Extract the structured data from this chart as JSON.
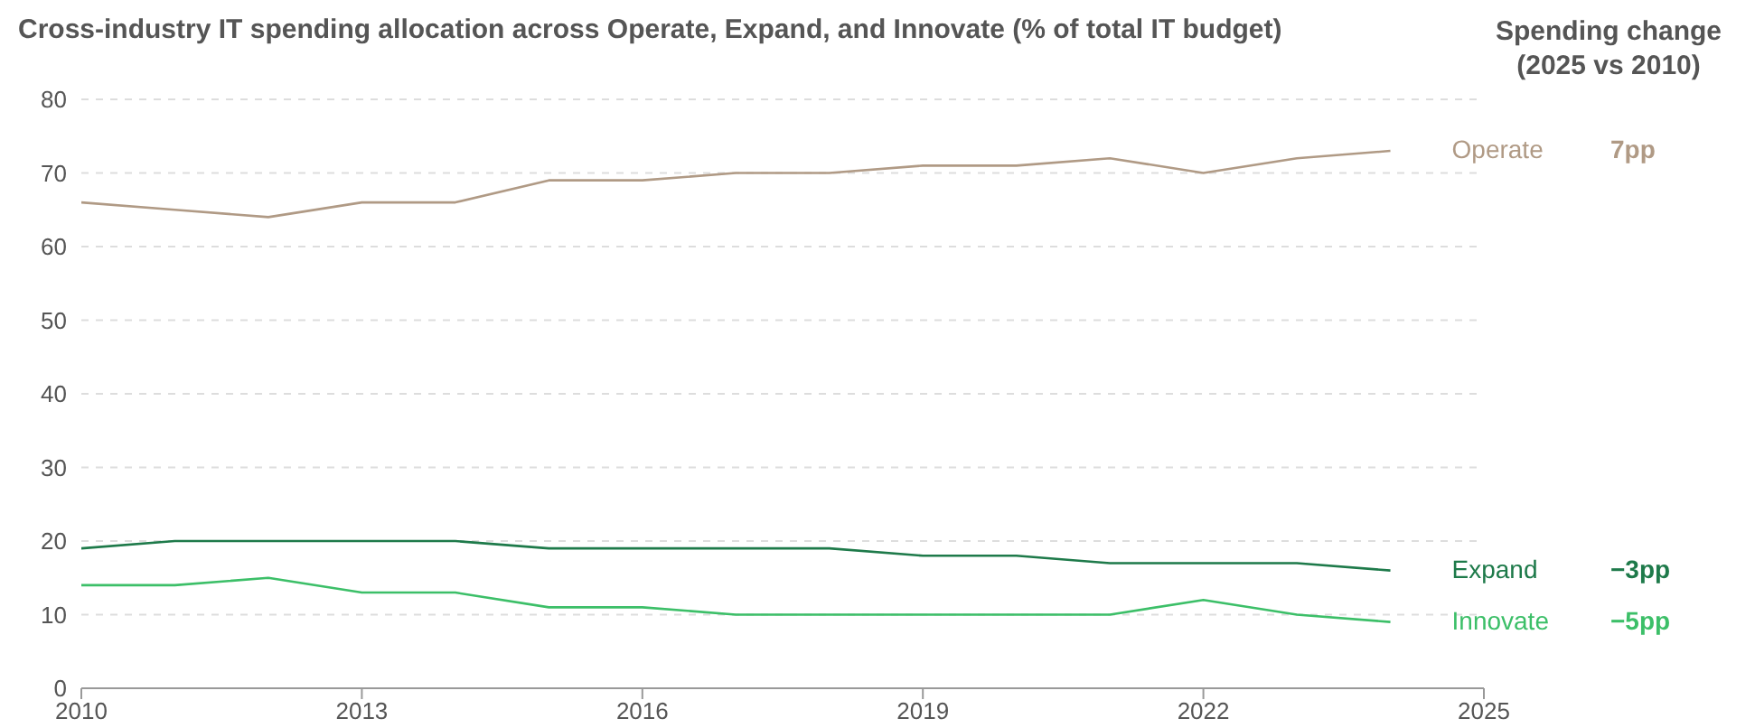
{
  "chart_data": {
    "type": "line",
    "title": "Cross-industry IT spending allocation across Operate, Expand, and Innovate (% of total IT budget)",
    "x": [
      2010,
      2011,
      2012,
      2013,
      2014,
      2015,
      2016,
      2017,
      2018,
      2019,
      2020,
      2021,
      2022,
      2023,
      2024
    ],
    "series": [
      {
        "name": "Operate",
        "color": "#b09a85",
        "values": [
          66,
          65,
          64,
          66,
          66,
          69,
          69,
          70,
          70,
          71,
          71,
          72,
          70,
          72,
          73
        ]
      },
      {
        "name": "Expand",
        "color": "#1e7a4a",
        "values": [
          19,
          20,
          20,
          20,
          20,
          19,
          19,
          19,
          19,
          18,
          18,
          17,
          17,
          17,
          16
        ]
      },
      {
        "name": "Innovate",
        "color": "#3cbf68",
        "values": [
          14,
          14,
          15,
          13,
          13,
          11,
          11,
          10,
          10,
          10,
          10,
          10,
          12,
          10,
          9
        ]
      }
    ],
    "annotations": [
      "Spending change\n(2025 vs 2010)",
      "7pp",
      "−3pp",
      "−5pp"
    ],
    "xlim": [
      2010,
      2025
    ],
    "xticks": [
      2010,
      2013,
      2016,
      2019,
      2022,
      2025
    ],
    "ylim": [
      0,
      80
    ],
    "yticks": [
      0,
      10,
      20,
      30,
      40,
      50,
      60,
      70,
      80
    ],
    "grid": "y",
    "marker": "none",
    "line_style": "solid"
  }
}
